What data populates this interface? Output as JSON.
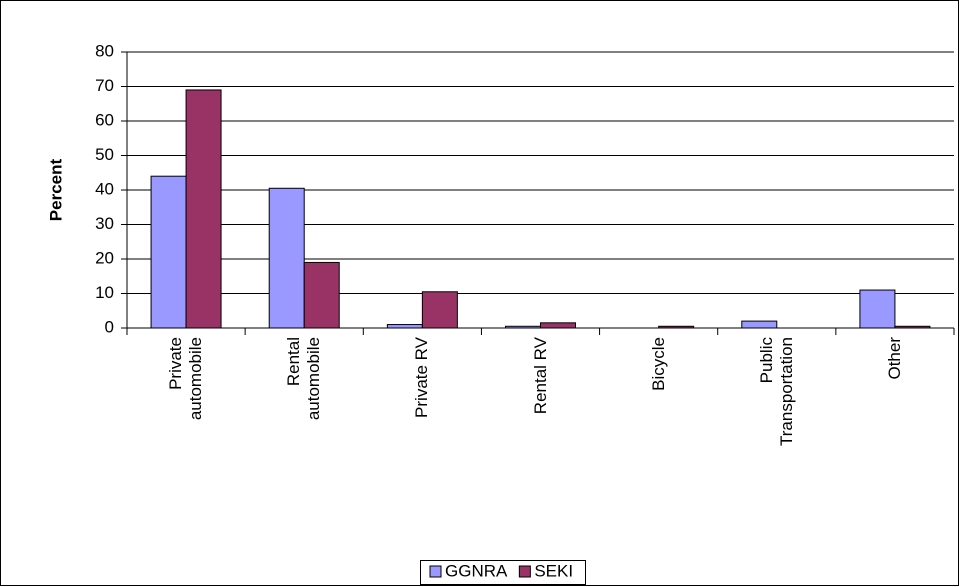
{
  "chart_data": {
    "type": "bar",
    "y_label": "Percent",
    "categories": [
      "Private automobile",
      "Rental automobile",
      "Private RV",
      "Rental RV",
      "Bicycle",
      "Public Transportation",
      "Other"
    ],
    "series": [
      {
        "name": "GGNRA",
        "color": "#9999ff",
        "values": [
          44,
          40.5,
          1,
          0.5,
          0,
          2,
          11
        ]
      },
      {
        "name": "SEKI",
        "color": "#993366",
        "values": [
          69,
          19,
          10.5,
          1.5,
          0.5,
          0,
          0.5
        ]
      }
    ],
    "ylim": [
      0,
      80
    ],
    "yticks": [
      0,
      10,
      20,
      30,
      40,
      50,
      60,
      70,
      80
    ],
    "grid": true,
    "legend": "bottom"
  }
}
